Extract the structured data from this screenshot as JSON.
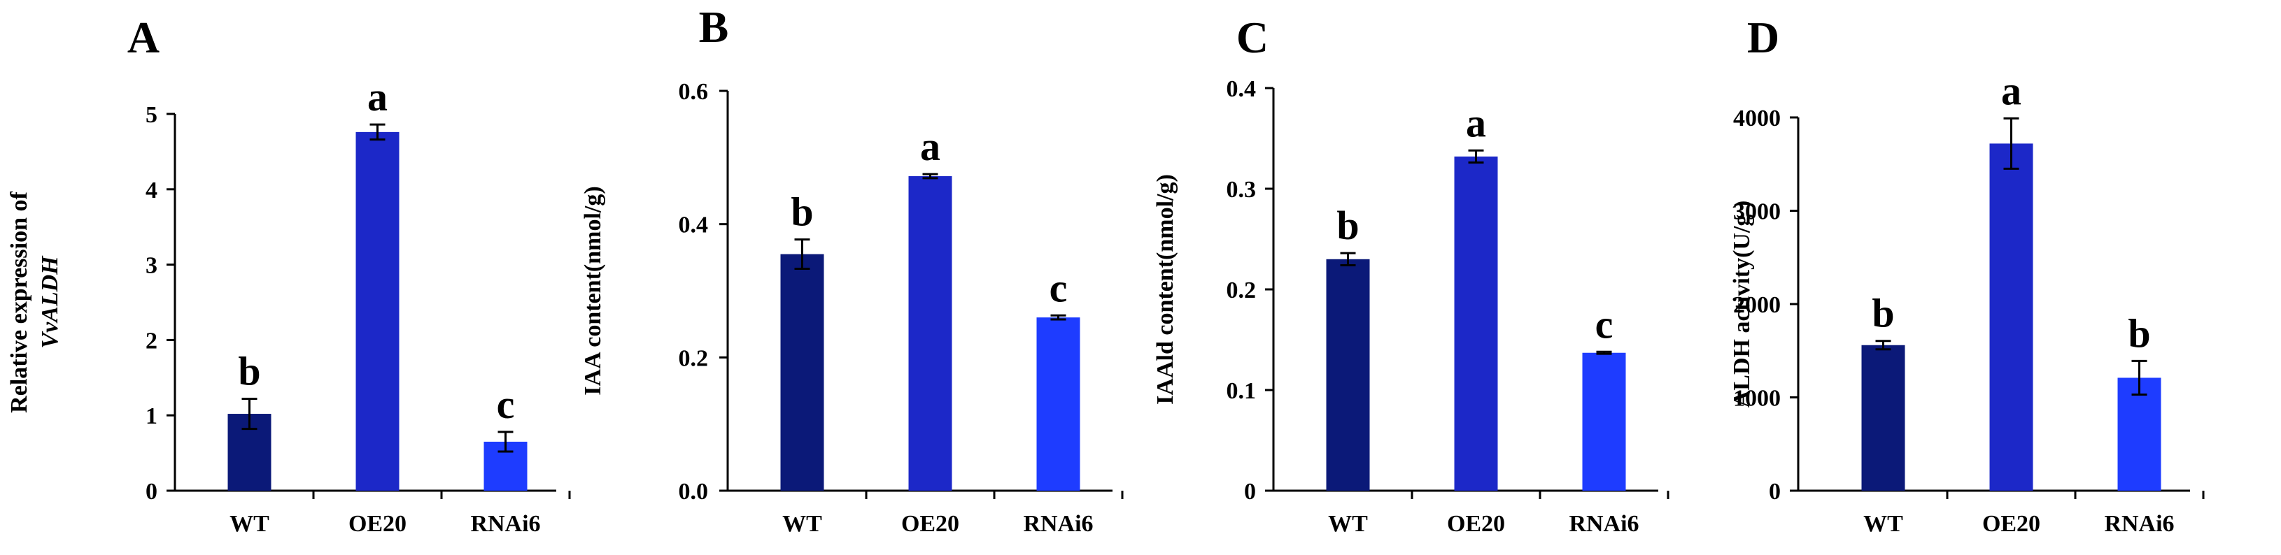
{
  "colors": {
    "WT": "#0b1978",
    "OE20": "#1c28c8",
    "RNAi6": "#1e3cff",
    "axis": "#000000"
  },
  "chart_data": [
    {
      "type": "bar",
      "panel": "A",
      "categories": [
        "WT",
        "OE20",
        "RNAi6"
      ],
      "values": [
        1.02,
        4.76,
        0.65
      ],
      "errors": [
        0.2,
        0.1,
        0.13
      ],
      "significance": [
        "b",
        "a",
        "c"
      ],
      "ylabel_line1": "Relative expression of",
      "ylabel_line2": "VvALDH",
      "ylim": [
        0,
        5
      ],
      "yticks": [
        "0",
        "1",
        "2",
        "3",
        "4",
        "5"
      ],
      "ytick_values": [
        0,
        1,
        2,
        3,
        4,
        5
      ]
    },
    {
      "type": "bar",
      "panel": "B",
      "categories": [
        "WT",
        "OE20",
        "RNAi6"
      ],
      "values": [
        0.355,
        0.472,
        0.26
      ],
      "errors": [
        0.022,
        0.003,
        0.003
      ],
      "significance": [
        "b",
        "a",
        "c"
      ],
      "ylabel_line1": "IAA content(nmol/g)",
      "ylabel_line2": "",
      "ylim": [
        0,
        0.6
      ],
      "yticks": [
        "0.0",
        "0.2",
        "0.4",
        "0.6"
      ],
      "ytick_values": [
        0,
        0.2,
        0.4,
        0.6
      ]
    },
    {
      "type": "bar",
      "panel": "C",
      "categories": [
        "WT",
        "OE20",
        "RNAi6"
      ],
      "values": [
        0.23,
        0.332,
        0.137
      ],
      "errors": [
        0.006,
        0.006,
        0.001
      ],
      "significance": [
        "b",
        "a",
        "c"
      ],
      "ylabel_line1": "IAAld content(nmol/g)",
      "ylabel_line2": "",
      "ylim": [
        0,
        0.4
      ],
      "yticks": [
        "0",
        "0.1",
        "0.2",
        "0.3",
        "0.4"
      ],
      "ytick_values": [
        0,
        0.1,
        0.2,
        0.3,
        0.4
      ]
    },
    {
      "type": "bar",
      "panel": "D",
      "categories": [
        "WT",
        "OE20",
        "RNAi6"
      ],
      "values": [
        1560,
        3720,
        1210
      ],
      "errors": [
        45,
        270,
        180
      ],
      "significance": [
        "b",
        "a",
        "b"
      ],
      "ylabel_line1": "ALDH activity(U/g )",
      "ylabel_line2": "",
      "ylim": [
        0,
        4000
      ],
      "yticks": [
        "0",
        "1000",
        "2000",
        "3000",
        "4000"
      ],
      "ytick_values": [
        0,
        1000,
        2000,
        3000,
        4000
      ]
    }
  ]
}
